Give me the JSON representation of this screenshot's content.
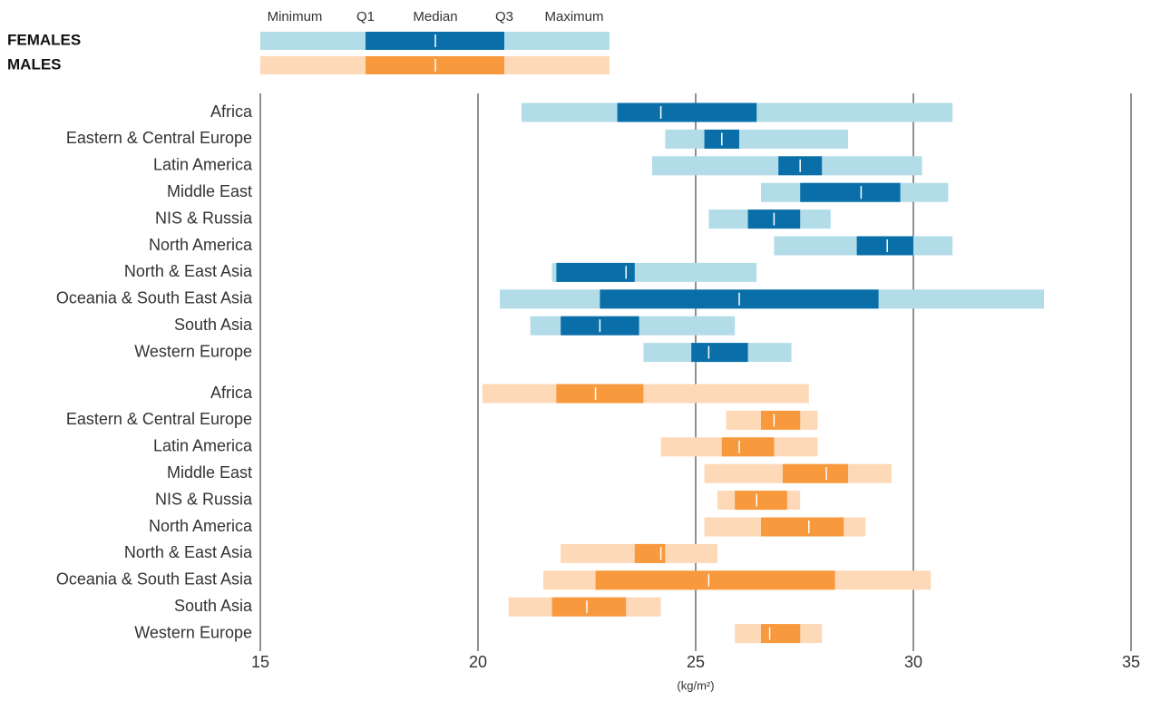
{
  "chart_data": {
    "type": "range-box",
    "xlabel": "(kg/m²)",
    "xlim": [
      15,
      35
    ],
    "xticks": [
      15,
      20,
      25,
      30,
      35
    ],
    "grid": true,
    "legend_labels": [
      "Minimum",
      "Q1",
      "Median",
      "Q3",
      "Maximum"
    ],
    "series": [
      {
        "name": "FEMALES",
        "color_light": "#b3dce9",
        "color_dark": "#0a6fa8",
        "categories": [
          "Africa",
          "Eastern & Central Europe",
          "Latin America",
          "Middle East",
          "NIS & Russia",
          "North America",
          "North & East Asia",
          "Oceania & South East Asia",
          "South Asia",
          "Western Europe"
        ],
        "min": [
          21.0,
          24.3,
          24.0,
          26.5,
          25.3,
          26.8,
          21.7,
          20.5,
          21.2,
          23.8
        ],
        "q1": [
          23.2,
          25.2,
          26.9,
          27.4,
          26.2,
          28.7,
          21.8,
          22.8,
          21.9,
          24.9
        ],
        "median": [
          24.2,
          25.6,
          27.4,
          28.8,
          26.8,
          29.4,
          23.4,
          26.0,
          22.8,
          25.3
        ],
        "q3": [
          26.4,
          26.0,
          27.9,
          29.7,
          27.4,
          30.0,
          23.6,
          29.2,
          23.7,
          26.2
        ],
        "max": [
          30.9,
          28.5,
          30.2,
          30.8,
          28.1,
          30.9,
          26.4,
          33.0,
          25.9,
          27.2
        ]
      },
      {
        "name": "MALES",
        "color_light": "#fdd9b7",
        "color_dark": "#f7993c",
        "categories": [
          "Africa",
          "Eastern & Central Europe",
          "Latin America",
          "Middle East",
          "NIS & Russia",
          "North America",
          "North & East Asia",
          "Oceania & South East Asia",
          "South Asia",
          "Western Europe"
        ],
        "min": [
          20.1,
          25.7,
          24.2,
          25.2,
          25.5,
          25.2,
          21.9,
          21.5,
          20.7,
          25.9
        ],
        "q1": [
          21.8,
          26.5,
          25.6,
          27.0,
          25.9,
          26.5,
          23.6,
          22.7,
          21.7,
          26.5
        ],
        "median": [
          22.7,
          26.8,
          26.0,
          28.0,
          26.4,
          27.6,
          24.2,
          25.3,
          22.5,
          26.7
        ],
        "q3": [
          23.8,
          27.4,
          26.8,
          28.5,
          27.1,
          28.4,
          24.3,
          28.2,
          23.4,
          27.4
        ],
        "max": [
          27.6,
          27.8,
          27.8,
          29.5,
          27.4,
          28.9,
          25.5,
          30.4,
          24.2,
          27.9
        ]
      }
    ]
  }
}
